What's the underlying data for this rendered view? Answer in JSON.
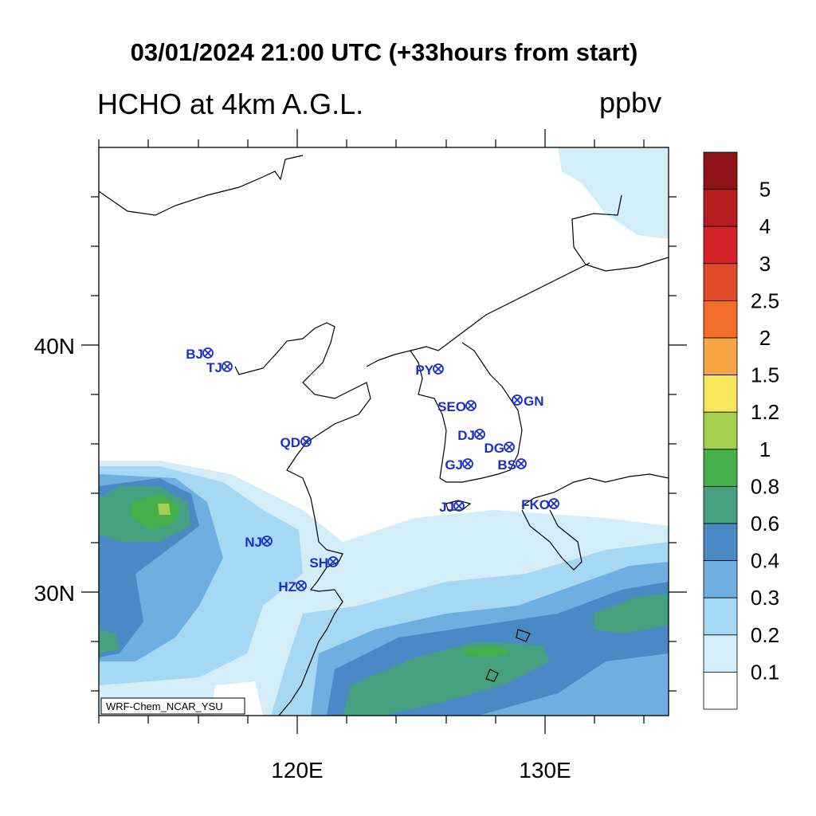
{
  "title": "03/01/2024 21:00 UTC (+33hours from start)",
  "variable_title": "HCHO at 4km A.G.L.",
  "units": "ppbv",
  "model_tag": "WRF-Chem_NCAR_YSU",
  "axes": {
    "x_ticks": [
      "120E",
      "130E"
    ],
    "y_ticks": [
      "40N",
      "30N"
    ]
  },
  "colorbar": {
    "labels": [
      "5",
      "4",
      "3",
      "2.5",
      "2",
      "1.5",
      "1.2",
      "1",
      "0.8",
      "0.6",
      "0.4",
      "0.3",
      "0.2",
      "0.1"
    ],
    "colors": [
      "#8e1418",
      "#b71c20",
      "#d5212a",
      "#e34a2c",
      "#f26c2a",
      "#f6a545",
      "#f7e55a",
      "#a7cf4f",
      "#45b04a",
      "#45a080",
      "#4889c6",
      "#6faee0",
      "#a6d8f3",
      "#d3edf9",
      "#ffffff"
    ]
  },
  "stations": [
    {
      "code": "BJ",
      "label_side": "left"
    },
    {
      "code": "TJ",
      "label_side": "left"
    },
    {
      "code": "PY",
      "label_side": "left"
    },
    {
      "code": "SEO",
      "label_side": "left"
    },
    {
      "code": "GN",
      "label_side": "right"
    },
    {
      "code": "QD",
      "label_side": "left"
    },
    {
      "code": "DJ",
      "label_side": "left"
    },
    {
      "code": "DG",
      "label_side": "left"
    },
    {
      "code": "GJ",
      "label_side": "left"
    },
    {
      "code": "BS",
      "label_side": "left"
    },
    {
      "code": "JJ",
      "label_side": "left"
    },
    {
      "code": "FKO",
      "label_side": "left"
    },
    {
      "code": "NJ",
      "label_side": "left"
    },
    {
      "code": "SH",
      "label_side": "left"
    },
    {
      "code": "HZ",
      "label_side": "left"
    }
  ]
}
